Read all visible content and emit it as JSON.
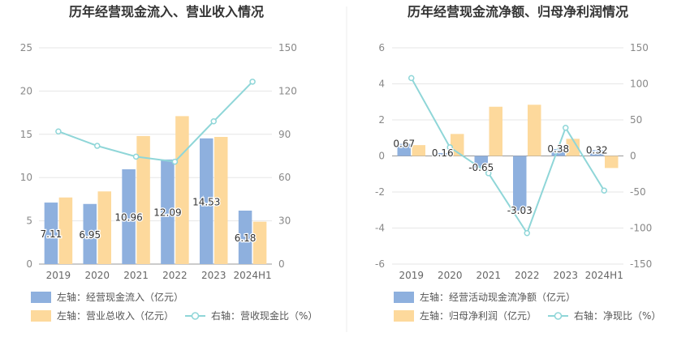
{
  "chart_data": [
    {
      "type": "bar",
      "title": "历年经营现金流入、营业收入情况",
      "categories": [
        "2019",
        "2020",
        "2021",
        "2022",
        "2023",
        "2024H1"
      ],
      "y_left": {
        "ylim": [
          0,
          25
        ],
        "ticks": [
          0,
          5,
          10,
          15,
          20,
          25
        ]
      },
      "y_right": {
        "ylim": [
          0,
          150
        ],
        "ticks": [
          0,
          30,
          60,
          90,
          120,
          150
        ]
      },
      "series": [
        {
          "name": "左轴：经营现金流入（亿元）",
          "kind": "bar",
          "axis": "left",
          "color": "#8eb0de",
          "values": [
            7.11,
            6.95,
            10.96,
            12.09,
            14.53,
            6.18
          ],
          "labels": [
            "7.11",
            "6.95",
            "10.96",
            "12.09",
            "14.53",
            "6.18"
          ]
        },
        {
          "name": "左轴：营业总收入（亿元）",
          "kind": "bar",
          "axis": "left",
          "color": "#fdd99c",
          "values": [
            7.7,
            8.4,
            14.8,
            17.1,
            14.7,
            4.9
          ]
        },
        {
          "name": "右轴：营收现金比（%）",
          "kind": "line",
          "axis": "right",
          "color": "#8fd6d8",
          "values": [
            92,
            82,
            74.5,
            71,
            99,
            126.5
          ]
        }
      ],
      "legend_placement": "bottom-left",
      "grid": true
    },
    {
      "type": "bar",
      "title": "历年经营现金流净额、归母净利润情况",
      "categories": [
        "2019",
        "2020",
        "2021",
        "2022",
        "2023",
        "2024H1"
      ],
      "y_left": {
        "ylim": [
          -6,
          6
        ],
        "ticks": [
          -6,
          -4,
          -2,
          0,
          2,
          4,
          6
        ]
      },
      "y_right": {
        "ylim": [
          -150,
          150
        ],
        "ticks": [
          -150,
          -100,
          -50,
          0,
          50,
          100,
          150
        ]
      },
      "series": [
        {
          "name": "左轴：经营活动现金流净额（亿元）",
          "kind": "bar",
          "axis": "left",
          "color": "#8eb0de",
          "values": [
            0.67,
            0.16,
            -0.65,
            -3.03,
            0.38,
            0.32
          ],
          "labels": [
            "0.67",
            "0.16",
            "-0.65",
            "-3.03",
            "0.38",
            "0.32"
          ]
        },
        {
          "name": "左轴：归母净利润（亿元）",
          "kind": "bar",
          "axis": "left",
          "color": "#fdd99c",
          "values": [
            0.6,
            1.22,
            2.73,
            2.84,
            0.95,
            -0.67
          ]
        },
        {
          "name": "右轴：净现比（%）",
          "kind": "line",
          "axis": "right",
          "color": "#8fd6d8",
          "values": [
            108,
            12,
            -24,
            -107,
            39,
            -48
          ]
        }
      ],
      "legend_placement": "bottom-left",
      "grid": true
    }
  ]
}
